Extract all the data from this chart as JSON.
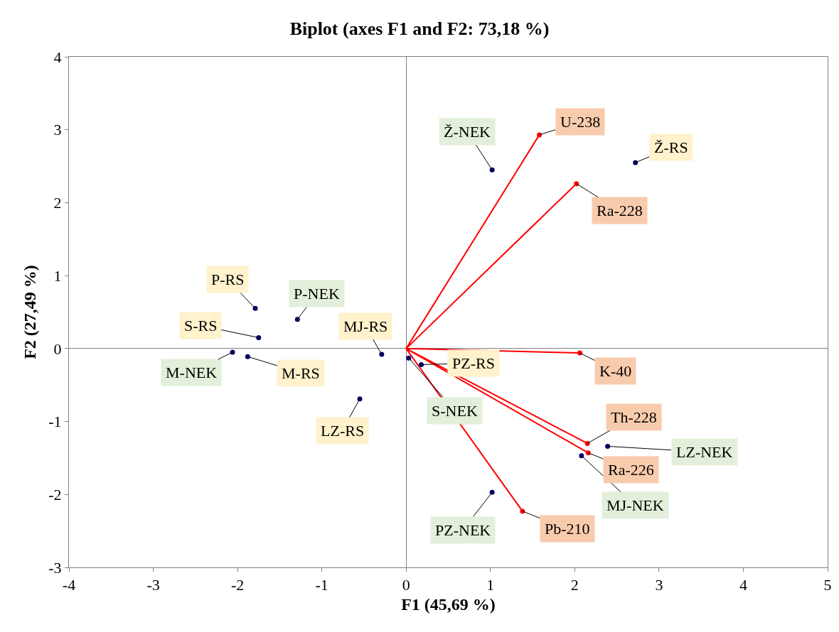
{
  "chart_data": {
    "type": "scatter",
    "title": "Biplot (axes F1 and F2: 73,18 %)",
    "xlabel": "F1 (45,69 %)",
    "ylabel": "F2 (27,49 %)",
    "xlim": [
      -4,
      5
    ],
    "xticks": [
      -4,
      -3,
      -2,
      -1,
      0,
      1,
      2,
      3,
      4,
      5
    ],
    "ylim": [
      -3,
      4
    ],
    "yticks": [
      -3,
      -2,
      -1,
      0,
      1,
      2,
      3,
      4
    ],
    "series": [
      {
        "type": "line",
        "color": "#ff0000",
        "marker": "none",
        "line_style": "solid",
        "x": [
          0,
          1.58,
          0,
          2.02,
          0,
          2.06,
          0,
          2.15,
          0,
          2.16,
          0,
          1.38
        ],
        "values": [
          0,
          2.93,
          0,
          2.26,
          0,
          -0.06,
          0,
          -1.3,
          0,
          -1.43,
          0,
          -2.23
        ]
      },
      {
        "color": "#000066",
        "marker": "circle",
        "x": [
          1.02,
          -1.29,
          -2.06,
          0.03,
          2.39,
          2.08,
          1.02
        ],
        "values": [
          2.45,
          0.4,
          -0.05,
          -0.13,
          -1.34,
          -1.47,
          -1.97
        ],
        "value_labels": [
          "Ž-NEK",
          "P-NEK",
          "M-NEK",
          "S-NEK",
          "LZ-NEK",
          "MJ-NEK",
          "PZ-NEK"
        ]
      },
      {
        "color": "#000066",
        "marker": "circle",
        "x": [
          2.72,
          -1.79,
          -1.75,
          -1.88,
          -0.29,
          -0.55,
          0.18
        ],
        "values": [
          2.55,
          0.55,
          0.15,
          -0.11,
          -0.08,
          -0.69,
          -0.22
        ],
        "value_labels": [
          "Ž-RS",
          "P-RS",
          "S-RS",
          "M-RS",
          "MJ-RS",
          "LZ-RS",
          "PZ-RS"
        ]
      },
      {
        "color": "#ff0000",
        "marker": "circle",
        "x": [
          1.58,
          2.02,
          2.06,
          2.15,
          2.16,
          1.38
        ],
        "values": [
          2.93,
          2.26,
          -0.06,
          -1.3,
          -1.43,
          -2.23
        ],
        "value_labels": [
          "U-238",
          "Ra-228",
          "K-40",
          "Th-228",
          "Ra-226",
          "Pb-210"
        ]
      }
    ]
  }
}
